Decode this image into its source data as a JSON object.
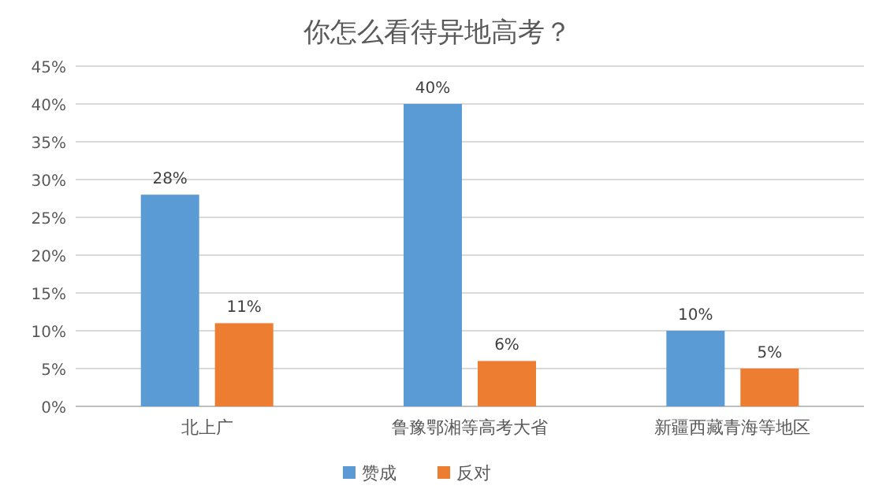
{
  "chart_data": {
    "type": "bar",
    "title": "你怎么看待异地高考？",
    "categories": [
      "北上广",
      "鲁豫鄂湘等高考大省",
      "新疆西藏青海等地区"
    ],
    "series": [
      {
        "name": "赞成",
        "color": "#5b9bd5",
        "values": [
          28,
          40,
          10
        ],
        "value_labels": [
          "28%",
          "40%",
          "10%"
        ]
      },
      {
        "name": "反对",
        "color": "#ed7d31",
        "values": [
          11,
          6,
          5
        ],
        "value_labels": [
          "11%",
          "6%",
          "5%"
        ]
      }
    ],
    "ylim": [
      0,
      45
    ],
    "yticks": [
      {
        "value": 0,
        "label": "0%"
      },
      {
        "value": 5,
        "label": "5%"
      },
      {
        "value": 10,
        "label": "10%"
      },
      {
        "value": 15,
        "label": "15%"
      },
      {
        "value": 20,
        "label": "20%"
      },
      {
        "value": 25,
        "label": "25%"
      },
      {
        "value": 30,
        "label": "30%"
      },
      {
        "value": 35,
        "label": "35%"
      },
      {
        "value": 40,
        "label": "40%"
      },
      {
        "value": 45,
        "label": "45%"
      }
    ],
    "grid": "y",
    "legend": "bottom"
  }
}
